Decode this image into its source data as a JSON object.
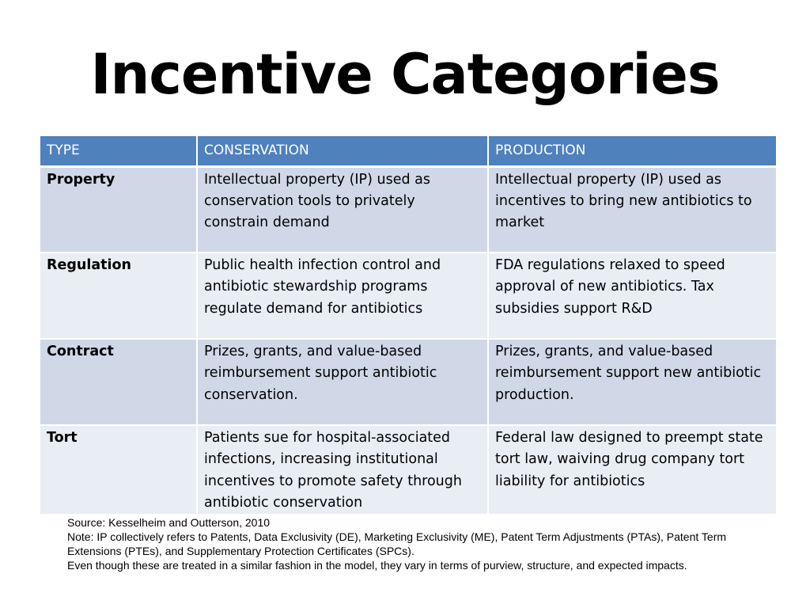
{
  "slide": {
    "title": "Incentive Categories"
  },
  "table": {
    "headers": [
      "TYPE",
      "CONSERVATION",
      "PRODUCTION"
    ],
    "rows": [
      {
        "type": "Property",
        "conservation": "Intellectual property (IP) used as conservation tools to privately constrain demand",
        "production": "Intellectual property (IP) used as incentives to bring new antibiotics to market"
      },
      {
        "type": "Regulation",
        "conservation": "Public health infection control and antibiotic stewardship programs regulate demand for antibiotics",
        "production": "FDA regulations relaxed to speed approval of new antibiotics. Tax subsidies support R&D"
      },
      {
        "type": "Contract",
        "conservation": "Prizes, grants, and value-based reimbursement support antibiotic conservation.",
        "production": "Prizes, grants, and value-based reimbursement support new antibiotic production."
      },
      {
        "type": "Tort",
        "conservation": "Patients sue for hospital-associated infections, increasing institutional incentives to promote safety through antibiotic conservation",
        "production": "Federal law designed to preempt state tort law, waiving drug company tort liability for antibiotics"
      }
    ],
    "header_color": "#4f81bd",
    "odd_row_color": "#d0d8e8",
    "even_row_color": "#e9edf4"
  },
  "footnote": {
    "source": "Source: Kesselheim and Outterson, 2010",
    "note": "Note: IP collectively refers to Patents, Data Exclusivity (DE), Marketing Exclusivity (ME), Patent Term Adjustments (PTAs), Patent Term Extensions (PTEs), and Supplementary Protection Certificates  (SPCs).",
    "caveat": "Even though these are treated in a similar fashion in the model, they vary in terms of purview, structure, and expected impacts."
  }
}
